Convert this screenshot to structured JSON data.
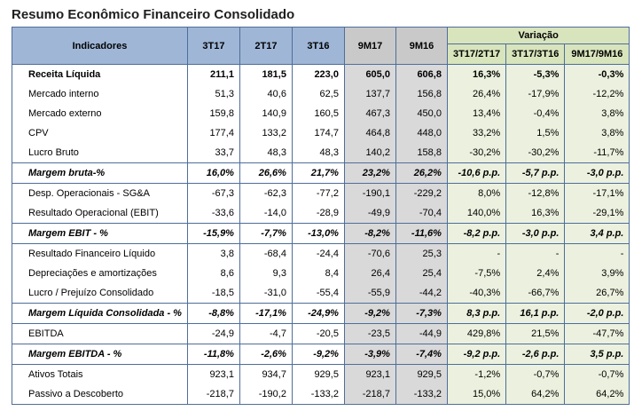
{
  "title": "Resumo Econômico Financeiro Consolidado",
  "header": {
    "indicadores": "Indicadores",
    "cols": [
      "3T17",
      "2T17",
      "3T16",
      "9M17",
      "9M16"
    ],
    "variacao": "Variação",
    "var_cols": [
      "3T17/2T17",
      "3T17/3T16",
      "9M17/9M16"
    ]
  },
  "rows": [
    {
      "label": "Receita Líquida",
      "style": "bold",
      "values": [
        "211,1",
        "181,5",
        "223,0",
        "605,0",
        "606,8"
      ],
      "vars": [
        "16,3%",
        "-5,3%",
        "-0,3%"
      ]
    },
    {
      "label": "Mercado interno",
      "style": "normal",
      "values": [
        "51,3",
        "40,6",
        "62,5",
        "137,7",
        "156,8"
      ],
      "vars": [
        "26,4%",
        "-17,9%",
        "-12,2%"
      ]
    },
    {
      "label": "Mercado externo",
      "style": "normal",
      "values": [
        "159,8",
        "140,9",
        "160,5",
        "467,3",
        "450,0"
      ],
      "vars": [
        "13,4%",
        "-0,4%",
        "3,8%"
      ]
    },
    {
      "label": "CPV",
      "style": "normal",
      "values": [
        "177,4",
        "133,2",
        "174,7",
        "464,8",
        "448,0"
      ],
      "vars": [
        "33,2%",
        "1,5%",
        "3,8%"
      ]
    },
    {
      "label": "Lucro Bruto",
      "style": "normal",
      "values": [
        "33,7",
        "48,3",
        "48,3",
        "140,2",
        "158,8"
      ],
      "vars": [
        "-30,2%",
        "-30,2%",
        "-11,7%"
      ]
    },
    {
      "label": "Margem bruta-%",
      "style": "ital",
      "values": [
        "16,0%",
        "26,6%",
        "21,7%",
        "23,2%",
        "26,2%"
      ],
      "vars": [
        "-10,6 p.p.",
        "-5,7 p.p.",
        "-3,0 p.p."
      ]
    },
    {
      "label": "Desp. Operacionais - SG&A",
      "style": "normal",
      "values": [
        "-67,3",
        "-62,3",
        "-77,2",
        "-190,1",
        "-229,2"
      ],
      "vars": [
        "8,0%",
        "-12,8%",
        "-17,1%"
      ]
    },
    {
      "label": "Resultado Operacional (EBIT)",
      "style": "normal",
      "values": [
        "-33,6",
        "-14,0",
        "-28,9",
        "-49,9",
        "-70,4"
      ],
      "vars": [
        "140,0%",
        "16,3%",
        "-29,1%"
      ]
    },
    {
      "label": "Margem EBIT - %",
      "style": "ital",
      "values": [
        "-15,9%",
        "-7,7%",
        "-13,0%",
        "-8,2%",
        "-11,6%"
      ],
      "vars": [
        "-8,2 p.p.",
        "-3,0 p.p.",
        "3,4 p.p."
      ]
    },
    {
      "label": "Resultado Financeiro Líquido",
      "style": "normal",
      "values": [
        "3,8",
        "-68,4",
        "-24,4",
        "-70,6",
        "25,3"
      ],
      "vars": [
        "-",
        "-",
        "-"
      ]
    },
    {
      "label": "Depreciações e amortizações",
      "style": "normal",
      "values": [
        "8,6",
        "9,3",
        "8,4",
        "26,4",
        "25,4"
      ],
      "vars": [
        "-7,5%",
        "2,4%",
        "3,9%"
      ]
    },
    {
      "label": "Lucro / Prejuízo Consolidado",
      "style": "normal",
      "values": [
        "-18,5",
        "-31,0",
        "-55,4",
        "-55,9",
        "-44,2"
      ],
      "vars": [
        "-40,3%",
        "-66,7%",
        "26,7%"
      ]
    },
    {
      "label": "Margem Líquida Consolidada - %",
      "style": "ital",
      "values": [
        "-8,8%",
        "-17,1%",
        "-24,9%",
        "-9,2%",
        "-7,3%"
      ],
      "vars": [
        "8,3 p.p.",
        "16,1 p.p.",
        "-2,0 p.p."
      ]
    },
    {
      "label": "EBITDA",
      "style": "normal",
      "values": [
        "-24,9",
        "-4,7",
        "-20,5",
        "-23,5",
        "-44,9"
      ],
      "vars": [
        "429,8%",
        "21,5%",
        "-47,7%"
      ]
    },
    {
      "label": "Margem EBITDA - %",
      "style": "ital",
      "values": [
        "-11,8%",
        "-2,6%",
        "-9,2%",
        "-3,9%",
        "-7,4%"
      ],
      "vars": [
        "-9,2 p.p.",
        "-2,6 p.p.",
        "3,5 p.p."
      ]
    },
    {
      "label": "Ativos Totais",
      "style": "normal",
      "values": [
        "923,1",
        "934,7",
        "929,5",
        "923,1",
        "929,5"
      ],
      "vars": [
        "-1,2%",
        "-0,7%",
        "-0,7%"
      ]
    },
    {
      "label": "Passivo a Descoberto",
      "style": "normal",
      "values": [
        "-218,7",
        "-190,2",
        "-133,2",
        "-218,7",
        "-133,2"
      ],
      "vars": [
        "15,0%",
        "64,2%",
        "64,2%"
      ]
    }
  ]
}
